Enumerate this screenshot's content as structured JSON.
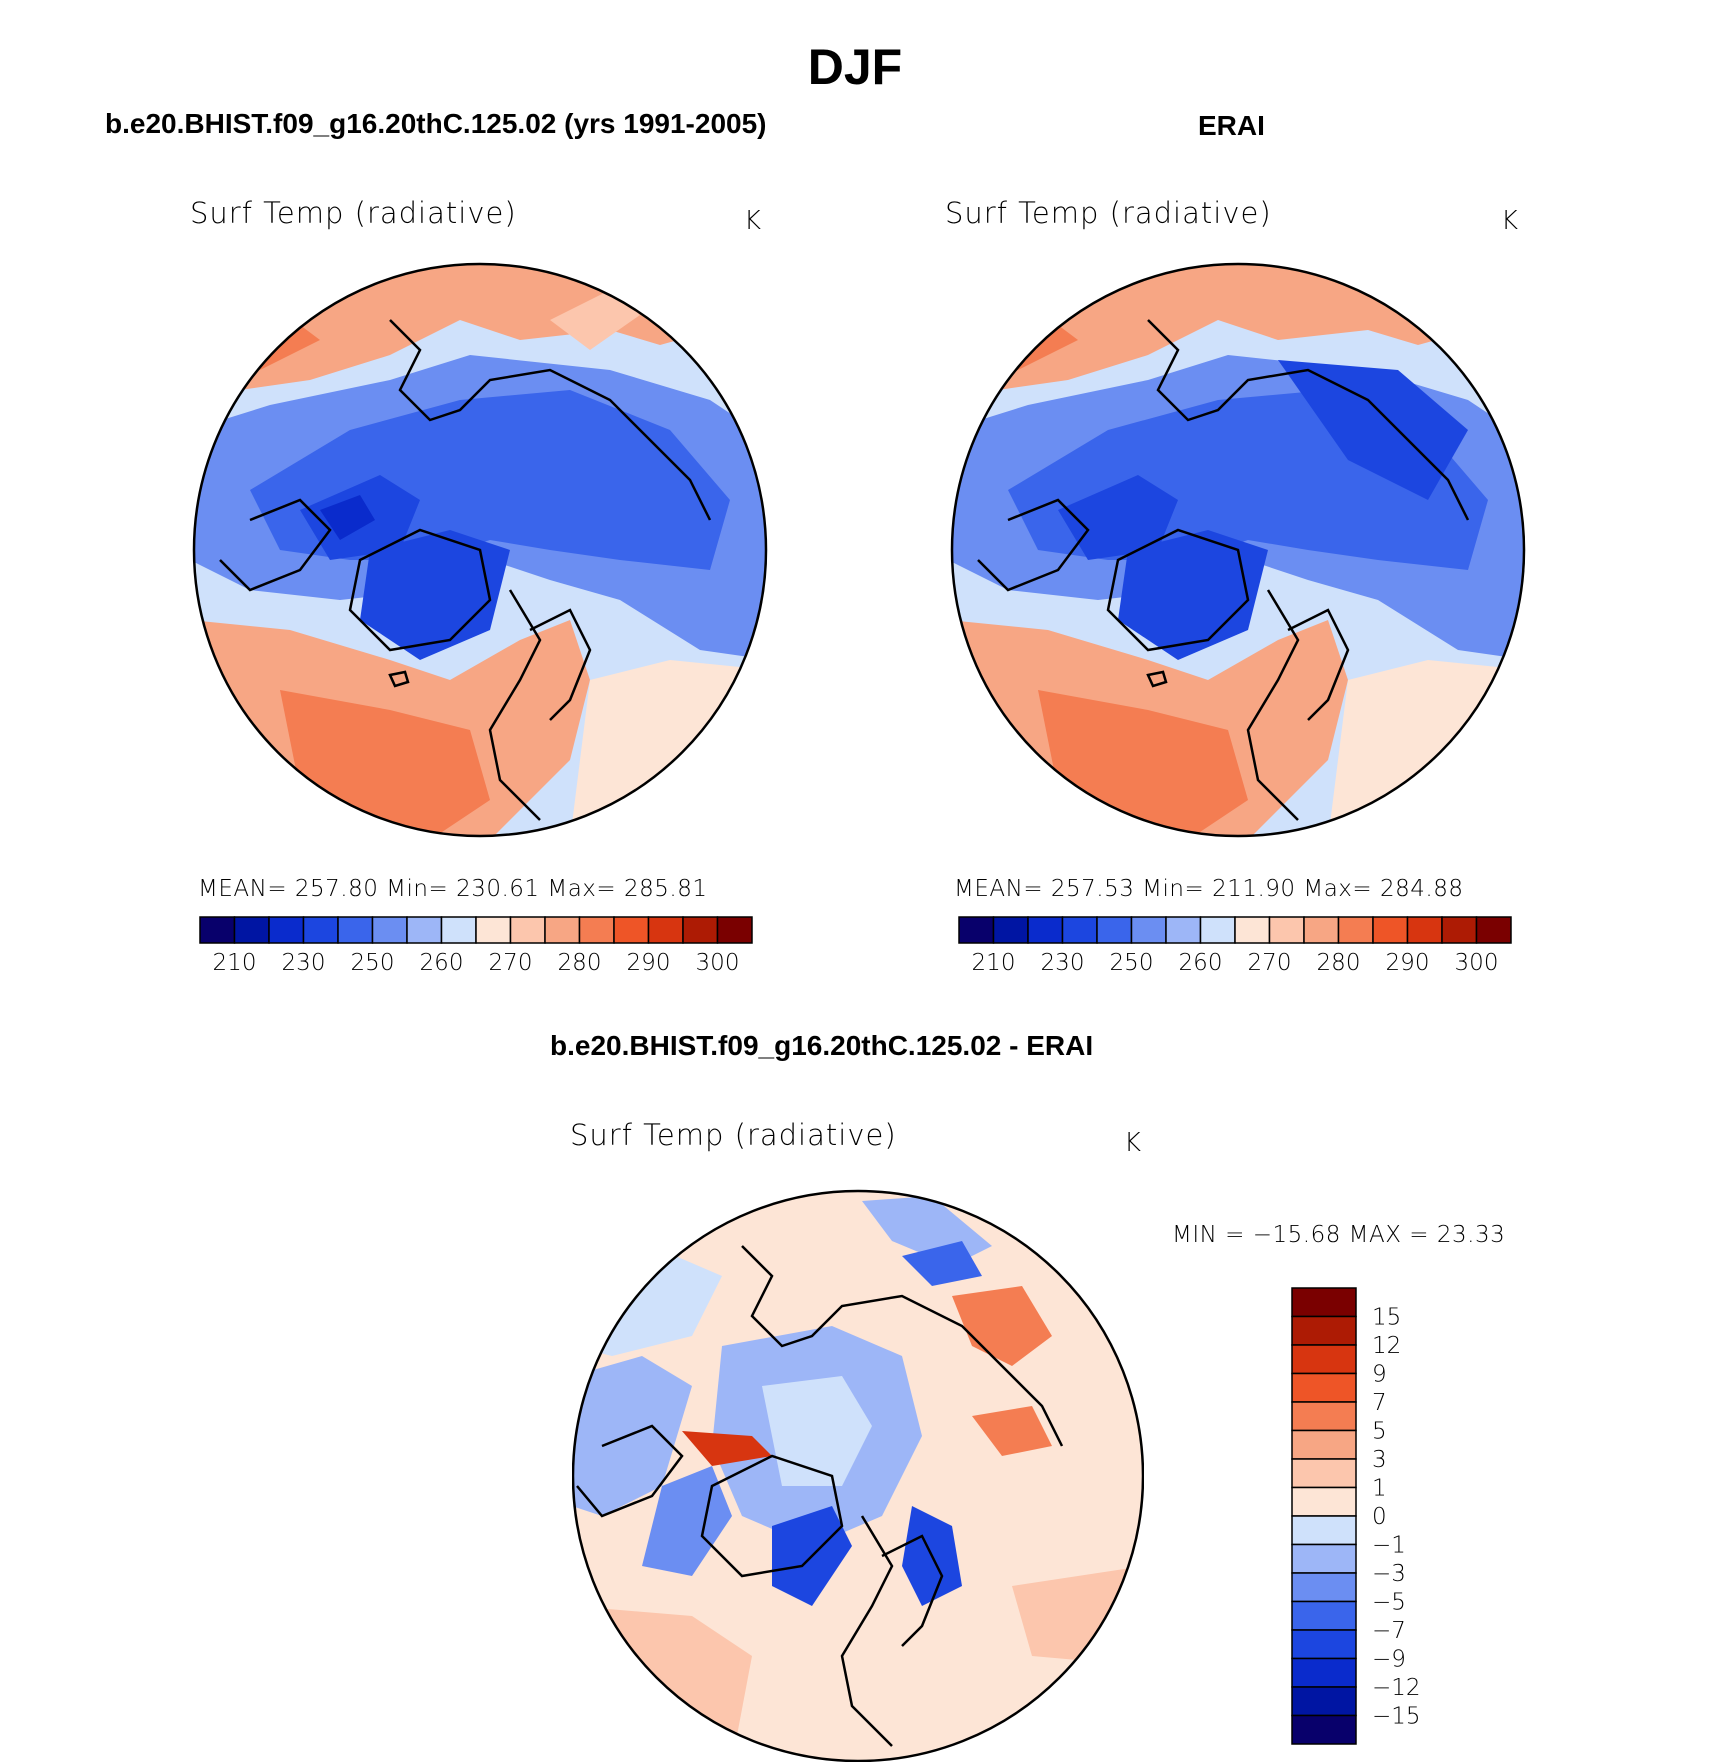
{
  "main_title": "DJF",
  "panels": {
    "model": {
      "case_title": "b.e20.BHIST.f09_g16.20thC.125.02 (yrs 1991-2005)",
      "var_title": "Surf Temp (radiative)",
      "units": "K",
      "stats": "MEAN= 257.80   Min= 230.61   Max= 285.81"
    },
    "obs": {
      "case_title": "ERAI",
      "var_title": "Surf Temp (radiative)",
      "units": "K",
      "stats": "MEAN= 257.53   Min= 211.90   Max= 284.88"
    },
    "diff": {
      "case_title": "b.e20.BHIST.f09_g16.20thC.125.02 - ERAI",
      "var_title": "Surf Temp (radiative)",
      "units": "K",
      "stats": "MIN = −15.68 MAX =   23.33"
    }
  },
  "abs_colorbar": {
    "colors": [
      "#08006b",
      "#0015a3",
      "#0a2bcc",
      "#1c46e0",
      "#3a65eb",
      "#6b8ef2",
      "#9db6f7",
      "#cfe1fb",
      "#fde5d6",
      "#fcc6ad",
      "#f7a684",
      "#f47d52",
      "#ee5527",
      "#d73510",
      "#ad1b04",
      "#7a0000"
    ],
    "tick_labels": [
      "210",
      "230",
      "250",
      "260",
      "270",
      "280",
      "290",
      "300"
    ]
  },
  "diff_colorbar": {
    "colors": [
      "#08006b",
      "#0015a3",
      "#0a2bcc",
      "#1c46e0",
      "#3a65eb",
      "#6b8ef2",
      "#9db6f7",
      "#cfe1fb",
      "#fde5d6",
      "#fcc6ad",
      "#f7a684",
      "#f47d52",
      "#ee5527",
      "#d73510",
      "#ad1b04",
      "#7a0000"
    ],
    "tick_labels": [
      "15",
      "12",
      "9",
      "7",
      "5",
      "3",
      "1",
      "0",
      "−1",
      "−3",
      "−5",
      "−7",
      "−9",
      "−12",
      "−15"
    ]
  }
}
